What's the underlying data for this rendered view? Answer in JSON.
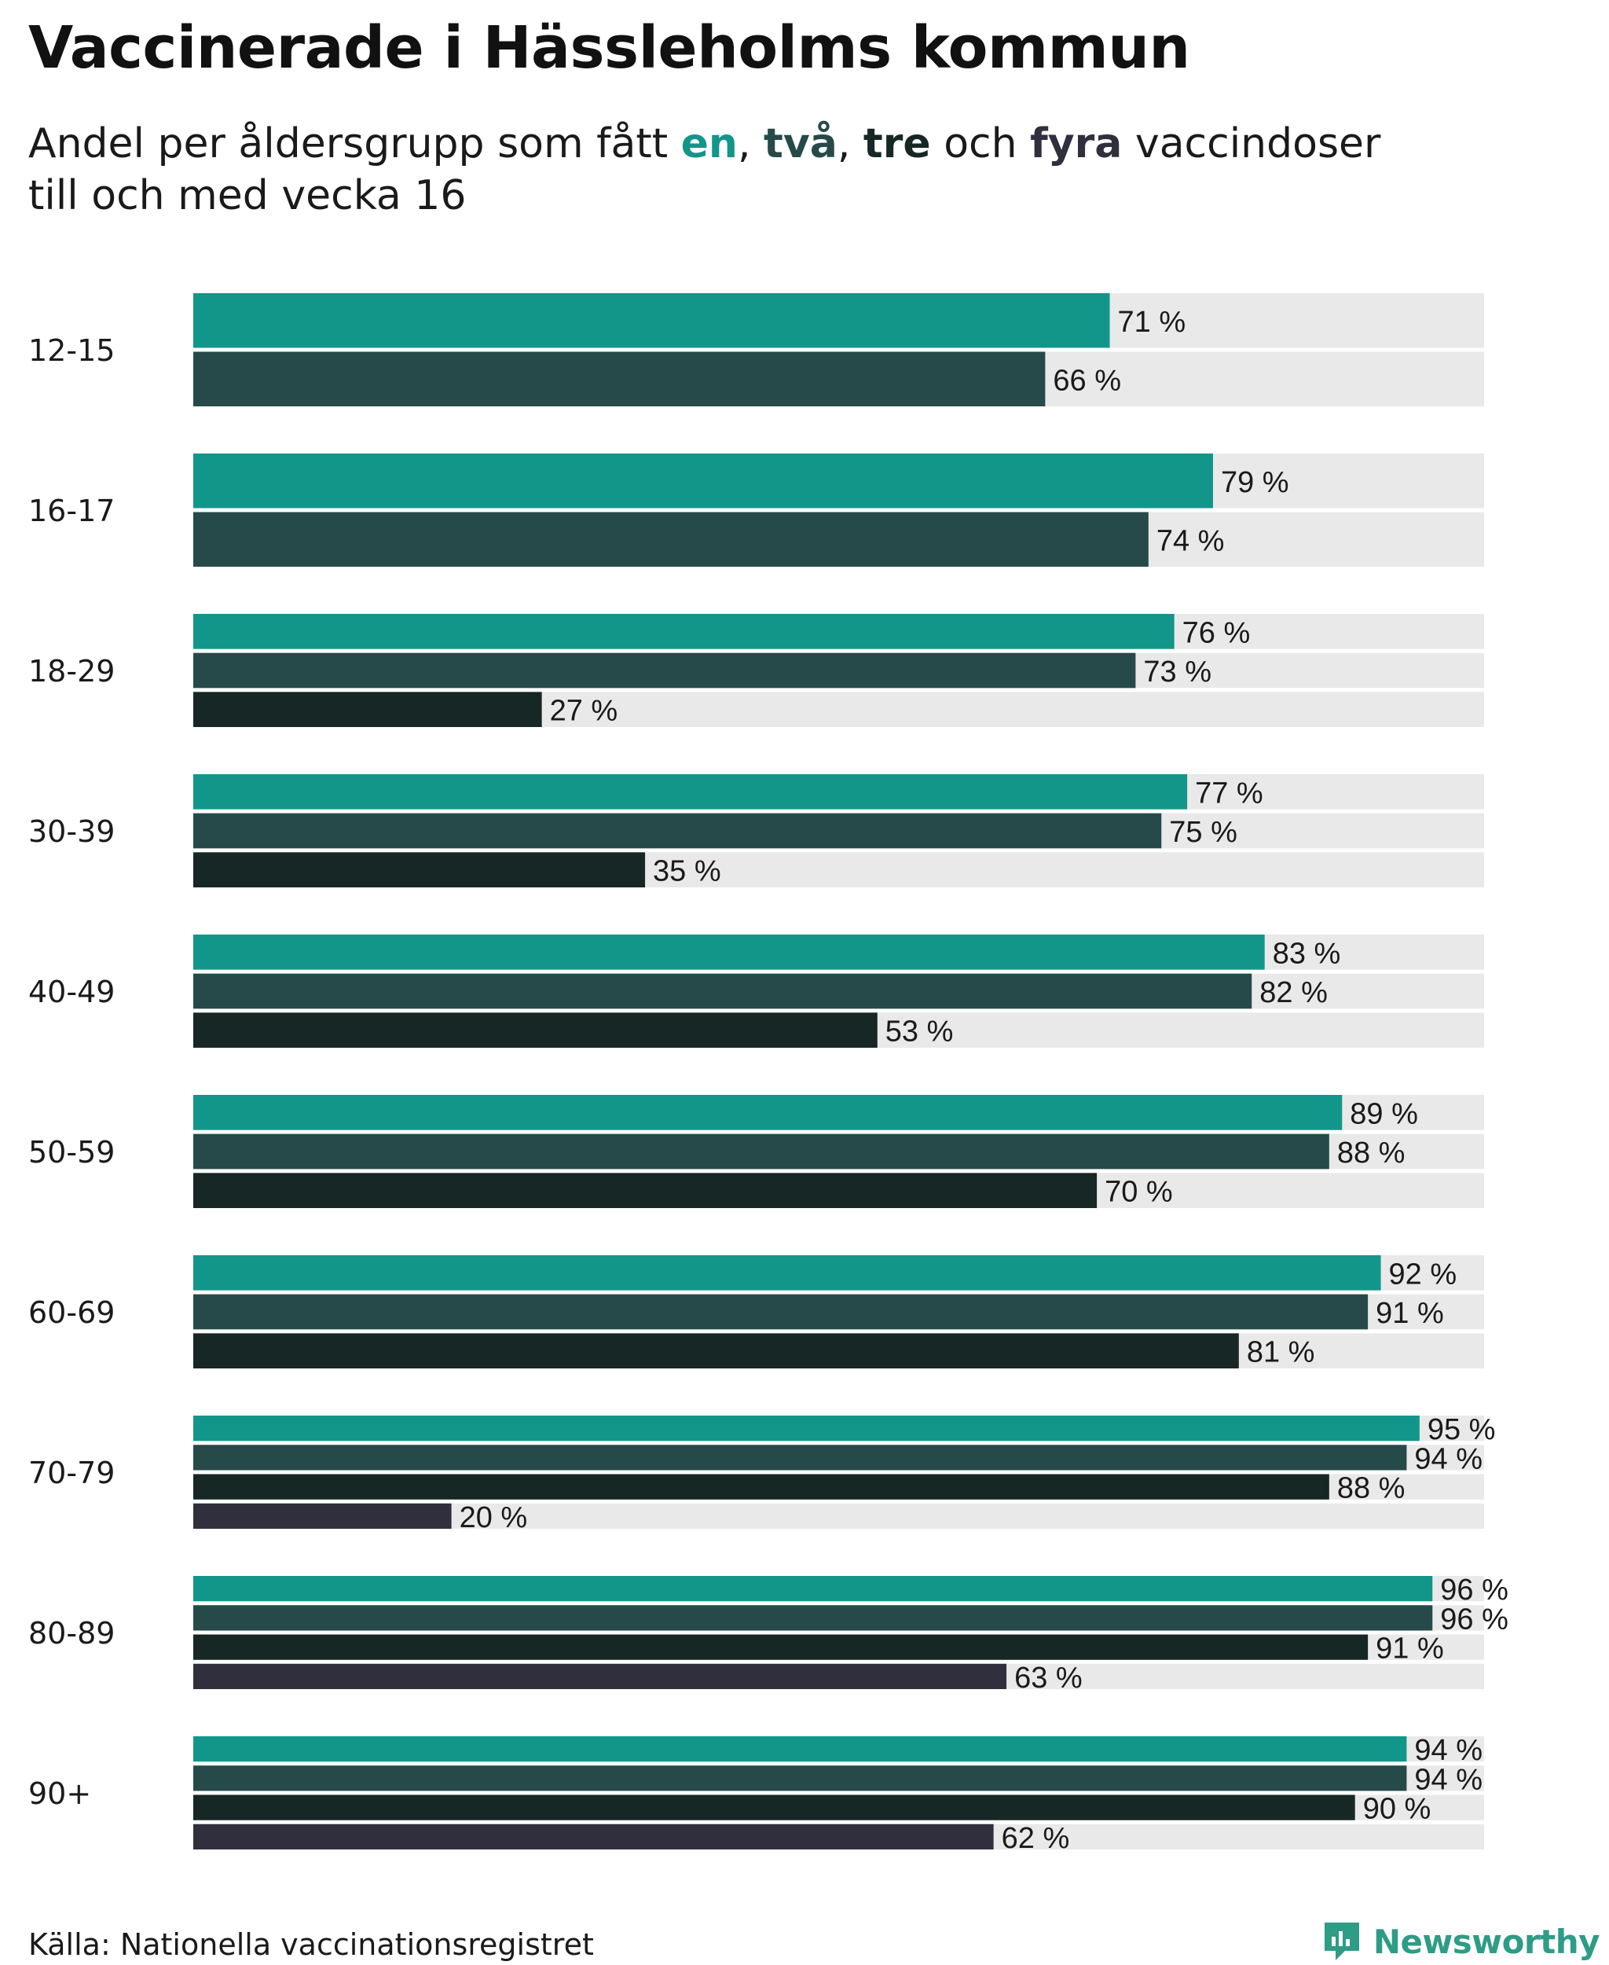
{
  "title": "Vaccinerade i Hässleholms kommun",
  "subtitle": {
    "prefix": "Andel per åldersgrupp som fått ",
    "dose1": "en",
    "sep1": ", ",
    "dose2": "två",
    "sep2": ", ",
    "dose3": "tre",
    "conj": " och ",
    "dose4": "fyra",
    "suffix": " vaccindoser",
    "line2": "till och med vecka 16"
  },
  "source": "Källa: Nationella vaccinationsregistret",
  "brand": {
    "name": "Newsworthy",
    "icon": "newsworthy-logo-icon"
  },
  "colors": {
    "dose1": "#13968a",
    "dose2": "#264a49",
    "dose3": "#172726",
    "dose4": "#2f2f3d",
    "track": "#e9e9e9",
    "brand": "#2e9c87"
  },
  "chart_data": {
    "type": "bar",
    "orientation": "horizontal",
    "title": "Vaccinerade i Hässleholms kommun",
    "xlim": [
      0,
      100
    ],
    "value_suffix": " %",
    "grid": false,
    "legend": "in subtitle",
    "categories": [
      "12-15",
      "16-17",
      "18-29",
      "30-39",
      "40-49",
      "50-59",
      "60-69",
      "70-79",
      "80-89",
      "90+"
    ],
    "series": [
      {
        "name": "en",
        "values": [
          71,
          79,
          76,
          77,
          83,
          89,
          92,
          95,
          96,
          94
        ]
      },
      {
        "name": "två",
        "values": [
          66,
          74,
          73,
          75,
          82,
          88,
          91,
          94,
          96,
          94
        ]
      },
      {
        "name": "tre",
        "values": [
          null,
          null,
          27,
          35,
          53,
          70,
          81,
          88,
          91,
          90
        ]
      },
      {
        "name": "fyra",
        "values": [
          null,
          null,
          null,
          null,
          null,
          null,
          null,
          20,
          63,
          62
        ]
      }
    ]
  }
}
